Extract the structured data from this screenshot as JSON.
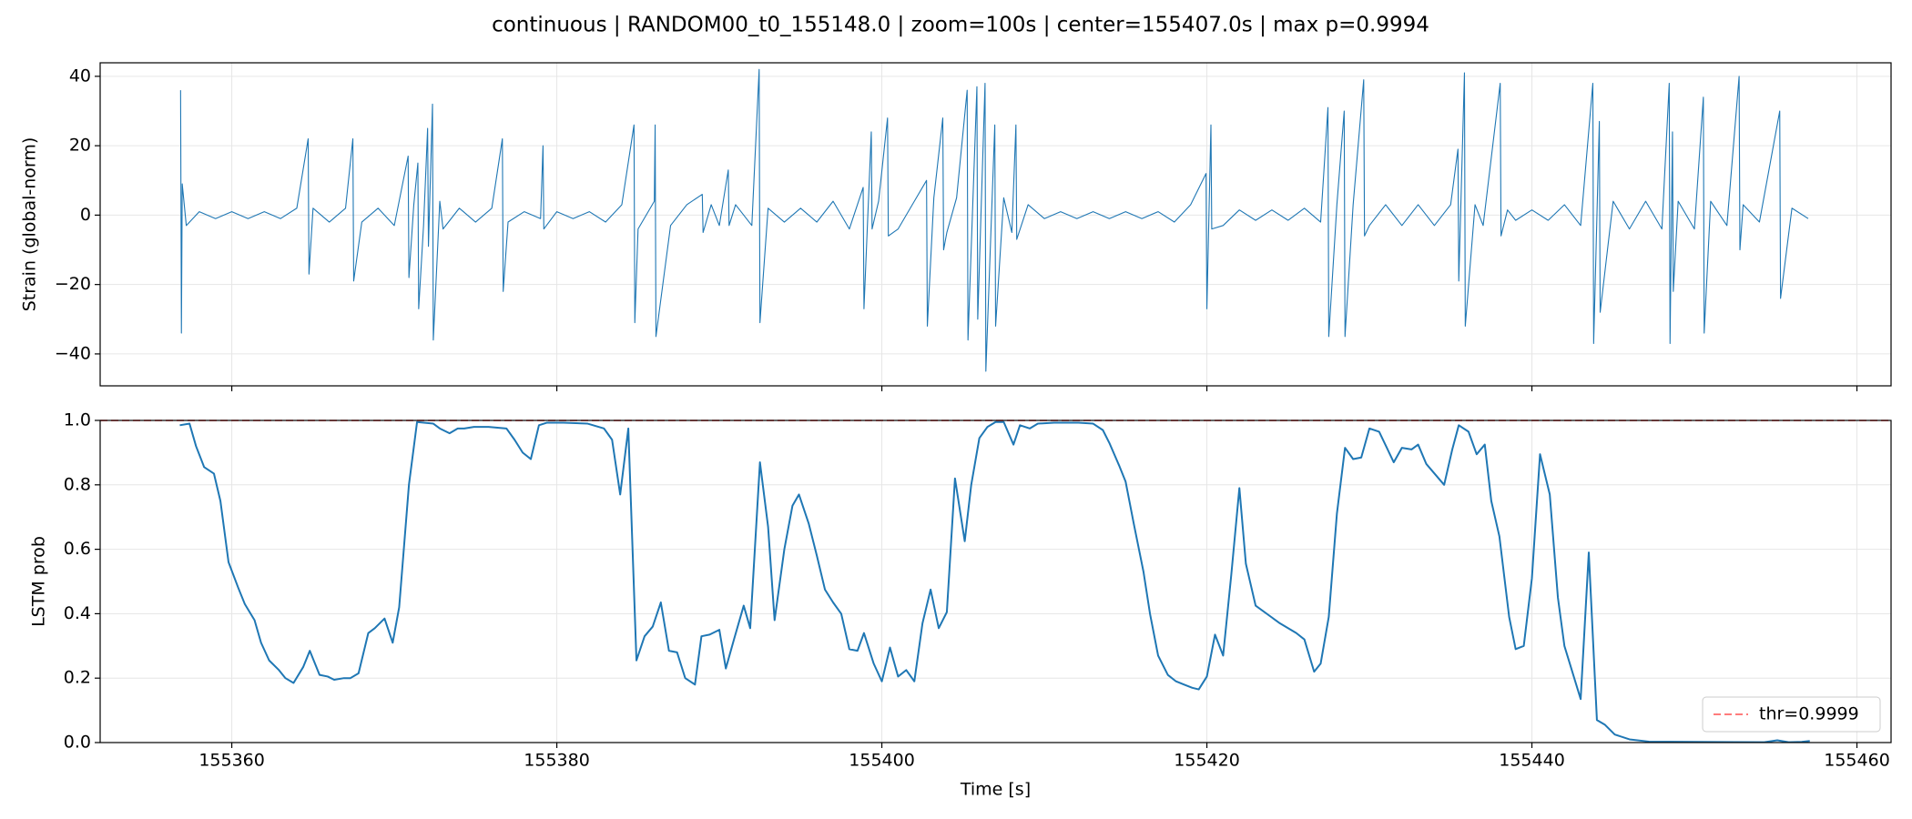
{
  "title": "continuous | RANDOM00_t0_155148.0 | zoom=100s | center=155407.0s | max p=0.9994",
  "chart_data": [
    {
      "type": "line",
      "ylabel": "Strain (global-norm)",
      "xlim": [
        155351.9,
        155462.1
      ],
      "ylim": [
        -49.2,
        43.9
      ],
      "xticks": [
        155360,
        155380,
        155400,
        155420,
        155440,
        155460
      ],
      "xtick_labels": false,
      "yticks": [
        {
          "value": -40,
          "label": "−40"
        },
        {
          "value": -20,
          "label": "−20"
        },
        0,
        20,
        40
      ],
      "grid": true,
      "line_width": 1.1,
      "series": [
        {
          "color": "#1f77b4",
          "x": [
            155356.85,
            155356.9,
            155356.95,
            155357.2,
            155358,
            155359,
            155360,
            155361,
            155362,
            155363,
            155364,
            155364.7,
            155364.75,
            155365,
            155366,
            155367,
            155367.45,
            155367.5,
            155368,
            155369,
            155370,
            155370.85,
            155370.9,
            155371.2,
            155371.45,
            155371.5,
            155371.8,
            155372.05,
            155372.1,
            155372.35,
            155372.4,
            155372.8,
            155373,
            155374,
            155375,
            155376,
            155376.65,
            155376.7,
            155377,
            155378,
            155379,
            155379.15,
            155379.2,
            155380,
            155381,
            155382,
            155383,
            155384,
            155384.75,
            155384.8,
            155385,
            155386,
            155386.05,
            155386.1,
            155387,
            155388,
            155388.95,
            155389,
            155389.5,
            155390,
            155390.55,
            155390.6,
            155391,
            155392,
            155392.45,
            155392.5,
            155393,
            155394,
            155395,
            155396,
            155397,
            155398,
            155398.85,
            155398.9,
            155399.35,
            155399.4,
            155399.8,
            155400.35,
            155400.4,
            155401,
            155402,
            155402.75,
            155402.8,
            155403.2,
            155403.75,
            155403.8,
            155404,
            155404.6,
            155405.25,
            155405.3,
            155405.85,
            155405.9,
            155406.35,
            155406.4,
            155406.95,
            155407,
            155407.5,
            155408,
            155408.25,
            155408.3,
            155409,
            155410,
            155411,
            155412,
            155413,
            155414,
            155415,
            155416,
            155417,
            155418,
            155419,
            155419.95,
            155420,
            155420.25,
            155420.3,
            155421,
            155422,
            155423,
            155424,
            155425,
            155426,
            155427,
            155427.45,
            155427.5,
            155428,
            155428.45,
            155428.5,
            155429,
            155429.65,
            155429.7,
            155430,
            155431,
            155432,
            155433,
            155434,
            155435,
            155435.45,
            155435.5,
            155435.85,
            155435.9,
            155436.5,
            155437,
            155438.05,
            155438.1,
            155438.5,
            155439,
            155440,
            155441,
            155442,
            155443,
            155443.75,
            155443.8,
            155444.15,
            155444.2,
            155445,
            155446,
            155447,
            155448,
            155448.45,
            155448.5,
            155448.65,
            155448.7,
            155449,
            155450,
            155450.55,
            155450.6,
            155451,
            155452,
            155452.75,
            155452.8,
            155453,
            155454,
            155455.25,
            155455.3,
            155456,
            155457
          ],
          "values": [
            36,
            -34,
            9,
            -3,
            1,
            -1,
            1,
            -1,
            1,
            -1,
            2,
            22,
            -17,
            2,
            -2,
            2,
            22,
            -19,
            -2,
            2,
            -3,
            17,
            -18,
            3,
            15,
            -27,
            -3,
            25,
            -9,
            32,
            -36,
            4,
            -4,
            2,
            -2,
            2,
            22,
            -22,
            -2,
            1,
            -1,
            20,
            -4,
            1,
            -1,
            1,
            -2,
            3,
            26,
            -31,
            -4,
            4,
            26,
            -35,
            -3,
            3,
            6,
            -5,
            3,
            -3,
            13,
            -3,
            3,
            -3,
            42,
            -31,
            2,
            -2,
            2,
            -2,
            4,
            -4,
            8,
            -27,
            24,
            -4,
            4,
            28,
            -6,
            -4,
            4,
            10,
            -32,
            5,
            28,
            -10,
            -5,
            5,
            36,
            -36,
            37,
            -30,
            38,
            -45,
            26,
            -32,
            5,
            -5,
            26,
            -7,
            3,
            -1,
            1,
            -1,
            1,
            -1,
            1,
            -1,
            1,
            -2,
            3,
            12,
            -27,
            26,
            -4,
            -3,
            1.5,
            -1.5,
            1.5,
            -1.5,
            2,
            -2,
            31,
            -35,
            3,
            30,
            -35,
            3,
            39,
            -6,
            -3,
            3,
            -3,
            3,
            -3,
            3,
            19,
            -19,
            41,
            -32,
            3,
            -3,
            38,
            -6,
            1.5,
            -1.5,
            1.5,
            -1.5,
            3,
            -3,
            38,
            -37,
            27,
            -28,
            4,
            -4,
            4,
            -4,
            38,
            -37,
            24,
            -22,
            4,
            -4,
            34,
            -34,
            4,
            -3,
            40,
            -10,
            3,
            -2,
            30,
            -24,
            2,
            -1
          ]
        }
      ]
    },
    {
      "type": "line",
      "ylabel": "LSTM prob",
      "xlabel": "Time [s]",
      "xlim": [
        155351.9,
        155462.1
      ],
      "ylim": [
        0,
        1
      ],
      "xticks": [
        155360,
        155380,
        155400,
        155420,
        155440,
        155460
      ],
      "xtick_labels": true,
      "yticks": [
        {
          "value": 0,
          "label": "0.0"
        },
        {
          "value": 0.2,
          "label": "0.2"
        },
        {
          "value": 0.4,
          "label": "0.4"
        },
        {
          "value": 0.6,
          "label": "0.6"
        },
        {
          "value": 0.8,
          "label": "0.8"
        },
        {
          "value": 1,
          "label": "1.0"
        }
      ],
      "grid": true,
      "line_width": 2,
      "legend": "lower right",
      "hlines": [
        {
          "name": "thr=0.9999",
          "y": 0.9999,
          "color": "#ff5050",
          "style": "dashed"
        }
      ],
      "series": [
        {
          "color": "#1f77b4",
          "x": [
            155356.8,
            155357.4,
            155357.8,
            155358.3,
            155358.9,
            155359.3,
            155359.8,
            155360.4,
            155360.8,
            155361.4,
            155361.8,
            155362.3,
            155362.9,
            155363.3,
            155363.8,
            155364.4,
            155364.8,
            155365.4,
            155365.9,
            155366.3,
            155366.9,
            155367.3,
            155367.8,
            155368.4,
            155368.8,
            155369.4,
            155369.9,
            155370.3,
            155370.9,
            155371.4,
            155372.4,
            155372.8,
            155373.4,
            155373.9,
            155374.3,
            155374.9,
            155375.8,
            155376.9,
            155377.4,
            155377.9,
            155378.4,
            155378.9,
            155379.4,
            155380.4,
            155381.9,
            155382.9,
            155383.4,
            155383.9,
            155384.4,
            155384.9,
            155385.4,
            155385.9,
            155386.4,
            155386.9,
            155387.4,
            155387.9,
            155388.5,
            155388.9,
            155389.4,
            155390,
            155390.4,
            155390.9,
            155391.5,
            155391.9,
            155392.5,
            155393,
            155393.4,
            155394,
            155394.5,
            155394.9,
            155395.5,
            155396,
            155396.5,
            155397,
            155397.5,
            155398,
            155398.5,
            155398.9,
            155399.5,
            155400,
            155400.5,
            155401,
            155401.5,
            155402,
            155402.5,
            155403,
            155403.5,
            155404,
            155404.5,
            155405.1,
            155405.5,
            155406,
            155406.5,
            155407,
            155407.5,
            155408.1,
            155408.5,
            155409.1,
            155409.6,
            155410.6,
            155412.1,
            155413,
            155413.6,
            155414,
            155414.6,
            155415,
            155415.5,
            155416.1,
            155416.5,
            155417,
            155417.6,
            155418.1,
            155418.6,
            155419.1,
            155419.5,
            155420,
            155420.5,
            155421,
            155421.5,
            155422,
            155422.4,
            155423,
            155424.5,
            155425.5,
            155426,
            155426.6,
            155427,
            155427.5,
            155428,
            155428.5,
            155429,
            155429.5,
            155430,
            155430.6,
            155431.5,
            155432,
            155432.6,
            155433,
            155433.5,
            155434.6,
            155435.1,
            155435.5,
            155436.1,
            155436.6,
            155437.1,
            155437.5,
            155438,
            155438.6,
            155439,
            155439.5,
            155440,
            155440.5,
            155441.1,
            155441.6,
            155442,
            155443,
            155443.5,
            155444,
            155444.5,
            155445.1,
            155446,
            155447.2,
            155454.3,
            155455.1,
            155455.8,
            155456.6,
            155457.1
          ],
          "values": [
            0.985,
            0.99,
            0.92,
            0.855,
            0.835,
            0.75,
            0.56,
            0.48,
            0.43,
            0.38,
            0.31,
            0.255,
            0.225,
            0.2,
            0.185,
            0.235,
            0.285,
            0.21,
            0.205,
            0.195,
            0.2,
            0.2,
            0.215,
            0.34,
            0.355,
            0.385,
            0.31,
            0.42,
            0.8,
            0.995,
            0.99,
            0.975,
            0.96,
            0.975,
            0.975,
            0.98,
            0.98,
            0.975,
            0.94,
            0.9,
            0.88,
            0.985,
            0.993,
            0.993,
            0.99,
            0.975,
            0.94,
            0.77,
            0.975,
            0.255,
            0.33,
            0.36,
            0.435,
            0.285,
            0.28,
            0.2,
            0.18,
            0.33,
            0.335,
            0.35,
            0.23,
            0.32,
            0.425,
            0.355,
            0.87,
            0.67,
            0.38,
            0.6,
            0.735,
            0.77,
            0.68,
            0.58,
            0.475,
            0.435,
            0.4,
            0.29,
            0.285,
            0.34,
            0.245,
            0.19,
            0.295,
            0.205,
            0.225,
            0.19,
            0.37,
            0.475,
            0.355,
            0.405,
            0.82,
            0.625,
            0.8,
            0.945,
            0.98,
            0.995,
            0.995,
            0.925,
            0.985,
            0.975,
            0.99,
            0.993,
            0.993,
            0.99,
            0.97,
            0.93,
            0.86,
            0.81,
            0.68,
            0.53,
            0.4,
            0.27,
            0.21,
            0.19,
            0.18,
            0.17,
            0.165,
            0.205,
            0.335,
            0.27,
            0.52,
            0.79,
            0.555,
            0.425,
            0.37,
            0.34,
            0.32,
            0.22,
            0.245,
            0.39,
            0.71,
            0.915,
            0.88,
            0.885,
            0.975,
            0.965,
            0.87,
            0.915,
            0.91,
            0.925,
            0.865,
            0.8,
            0.91,
            0.985,
            0.965,
            0.895,
            0.925,
            0.75,
            0.64,
            0.39,
            0.29,
            0.3,
            0.51,
            0.895,
            0.77,
            0.45,
            0.3,
            0.135,
            0.59,
            0.07,
            0.055,
            0.025,
            0.01,
            0.003,
            0.001,
            0.007,
            0.001,
            0.002,
            0.005
          ]
        }
      ]
    }
  ]
}
